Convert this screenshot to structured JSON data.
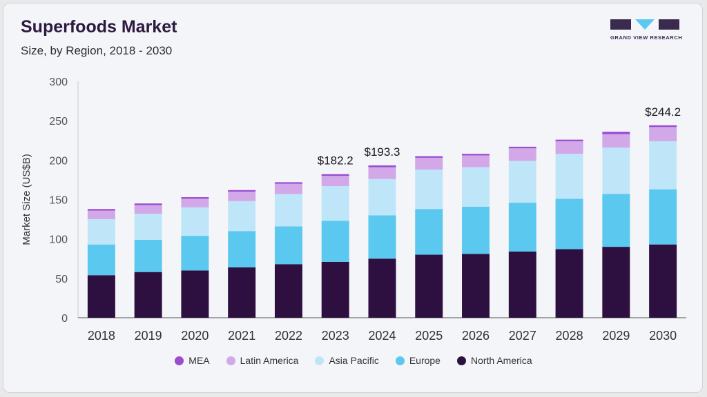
{
  "header": {
    "title": "Superfoods Market",
    "subtitle": "Size, by Region, 2018 - 2030"
  },
  "logo": {
    "text": "GRAND VIEW RESEARCH",
    "colors": {
      "dark": "#3a2a4e",
      "accent": "#5bc8f0"
    }
  },
  "chart_data": {
    "type": "bar",
    "stacked": true,
    "categories": [
      "2018",
      "2019",
      "2020",
      "2021",
      "2022",
      "2023",
      "2024",
      "2025",
      "2026",
      "2027",
      "2028",
      "2029",
      "2030"
    ],
    "ylabel": "Market Size (US$B)",
    "xlabel": "",
    "ylim": [
      0,
      300
    ],
    "yticks": [
      0,
      50,
      100,
      150,
      200,
      250,
      300
    ],
    "grid": false,
    "legend_position": "bottom",
    "series": [
      {
        "name": "North America",
        "color": "#2e1040",
        "values": [
          54,
          58,
          60,
          64,
          68,
          71,
          75,
          80,
          81,
          84,
          87,
          90,
          93
        ]
      },
      {
        "name": "Europe",
        "color": "#5bc8f0",
        "values": [
          39,
          41,
          44,
          46,
          48,
          52,
          55,
          58,
          60,
          62,
          64,
          67,
          70
        ]
      },
      {
        "name": "Asia Pacific",
        "color": "#bfe6f8",
        "values": [
          32,
          33,
          36,
          38,
          41,
          44,
          46,
          50,
          50,
          53,
          57,
          59,
          61
        ]
      },
      {
        "name": "Latin America",
        "color": "#d3a8e8",
        "values": [
          11,
          11,
          11,
          12,
          13,
          13,
          15,
          15,
          15,
          16,
          16,
          17,
          18
        ]
      },
      {
        "name": "MEA",
        "color": "#9a4dd0",
        "values": [
          2,
          2,
          2,
          2,
          2,
          2.2,
          2.3,
          2,
          2,
          2,
          2,
          3,
          2.2
        ]
      }
    ],
    "annotations": [
      {
        "category": "2023",
        "text": "$182.2",
        "value": 182.2
      },
      {
        "category": "2024",
        "text": "$193.3",
        "value": 193.3
      },
      {
        "category": "2030",
        "text": "$244.2",
        "value": 244.2
      }
    ]
  }
}
